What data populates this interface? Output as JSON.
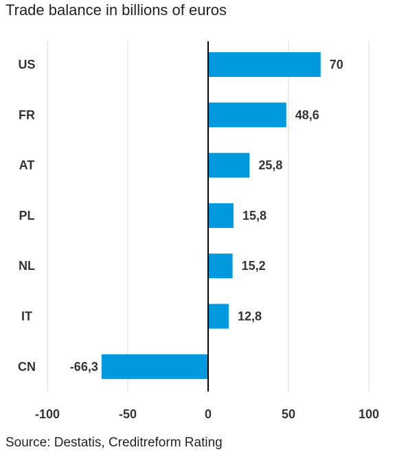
{
  "title": "Trade balance in billions of euros",
  "source": "Source: Destatis, Creditreform Rating",
  "colors": {
    "bar": "#0099dd",
    "grid": "#d9d9d9",
    "zero_line": "#000000"
  },
  "chart_data": {
    "type": "bar",
    "orientation": "horizontal",
    "title": "Trade balance in billions of euros",
    "categories": [
      "US",
      "FR",
      "AT",
      "PL",
      "NL",
      "IT",
      "CN"
    ],
    "values": [
      70,
      48.6,
      25.8,
      15.8,
      15.2,
      12.8,
      -66.3
    ],
    "value_labels": [
      "70",
      "48,6",
      "25,8",
      "15,8",
      "15,2",
      "12,8",
      "-66,3"
    ],
    "xlim": [
      -100,
      100
    ],
    "xticks": [
      -100,
      -50,
      0,
      50,
      100
    ],
    "xtick_labels": [
      "-100",
      "-50",
      "0",
      "50",
      "100"
    ],
    "grid": true
  }
}
